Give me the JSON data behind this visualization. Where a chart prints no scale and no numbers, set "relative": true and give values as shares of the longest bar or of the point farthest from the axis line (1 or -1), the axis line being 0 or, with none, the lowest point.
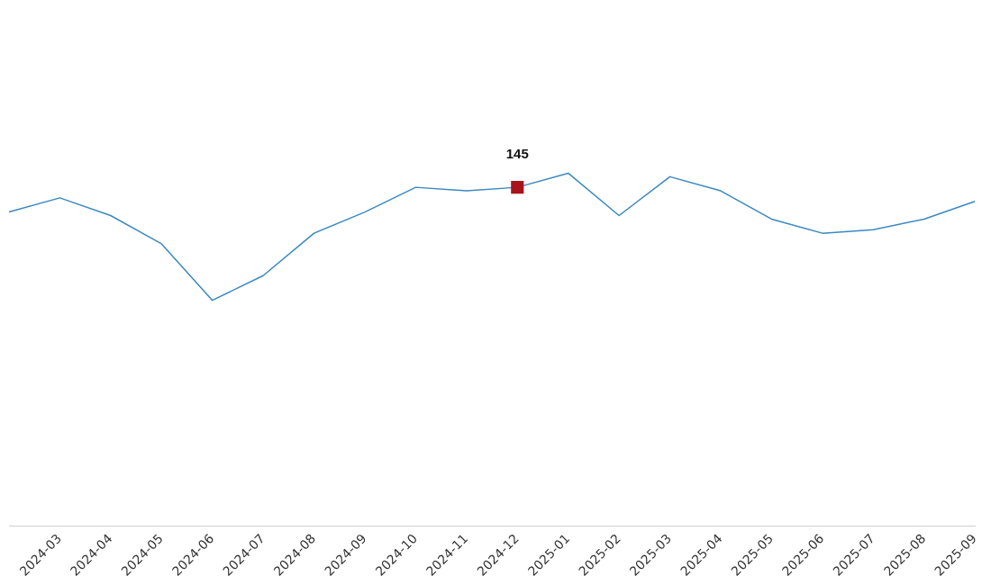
{
  "chart_data": {
    "type": "line",
    "relative": true,
    "categories": [
      null,
      "2024-03",
      "2024-04",
      "2024-05",
      "2024-06",
      "2024-07",
      "2024-08",
      "2024-09",
      "2024-10",
      "2024-11",
      "2024-12",
      "2025-01",
      "2025-02",
      "2025-03",
      "2025-04",
      "2025-05",
      "2025-06",
      "2025-07",
      "2025-08",
      "2025-09"
    ],
    "series": [
      {
        "color": "#3b88c1",
        "values": [
          0.89,
          0.93,
          0.88,
          0.8,
          0.64,
          0.71,
          0.83,
          0.89,
          0.96,
          0.95,
          0.96,
          1,
          0.88,
          0.99,
          0.95,
          0.87,
          0.83,
          0.84,
          0.87,
          0.92
        ]
      },
      {
        "type": "scatter",
        "color": "#a8141a",
        "marker": "square",
        "values": [
          null,
          null,
          null,
          null,
          null,
          null,
          null,
          null,
          null,
          null,
          0.96,
          null,
          null,
          null,
          null,
          null,
          null,
          null,
          null,
          null
        ]
      }
    ],
    "annotations": [
      {
        "text": "145",
        "x": "2024-12",
        "y": 0.96
      }
    ],
    "grid": false,
    "legend": false,
    "marker": "none",
    "line_style": "solid"
  }
}
